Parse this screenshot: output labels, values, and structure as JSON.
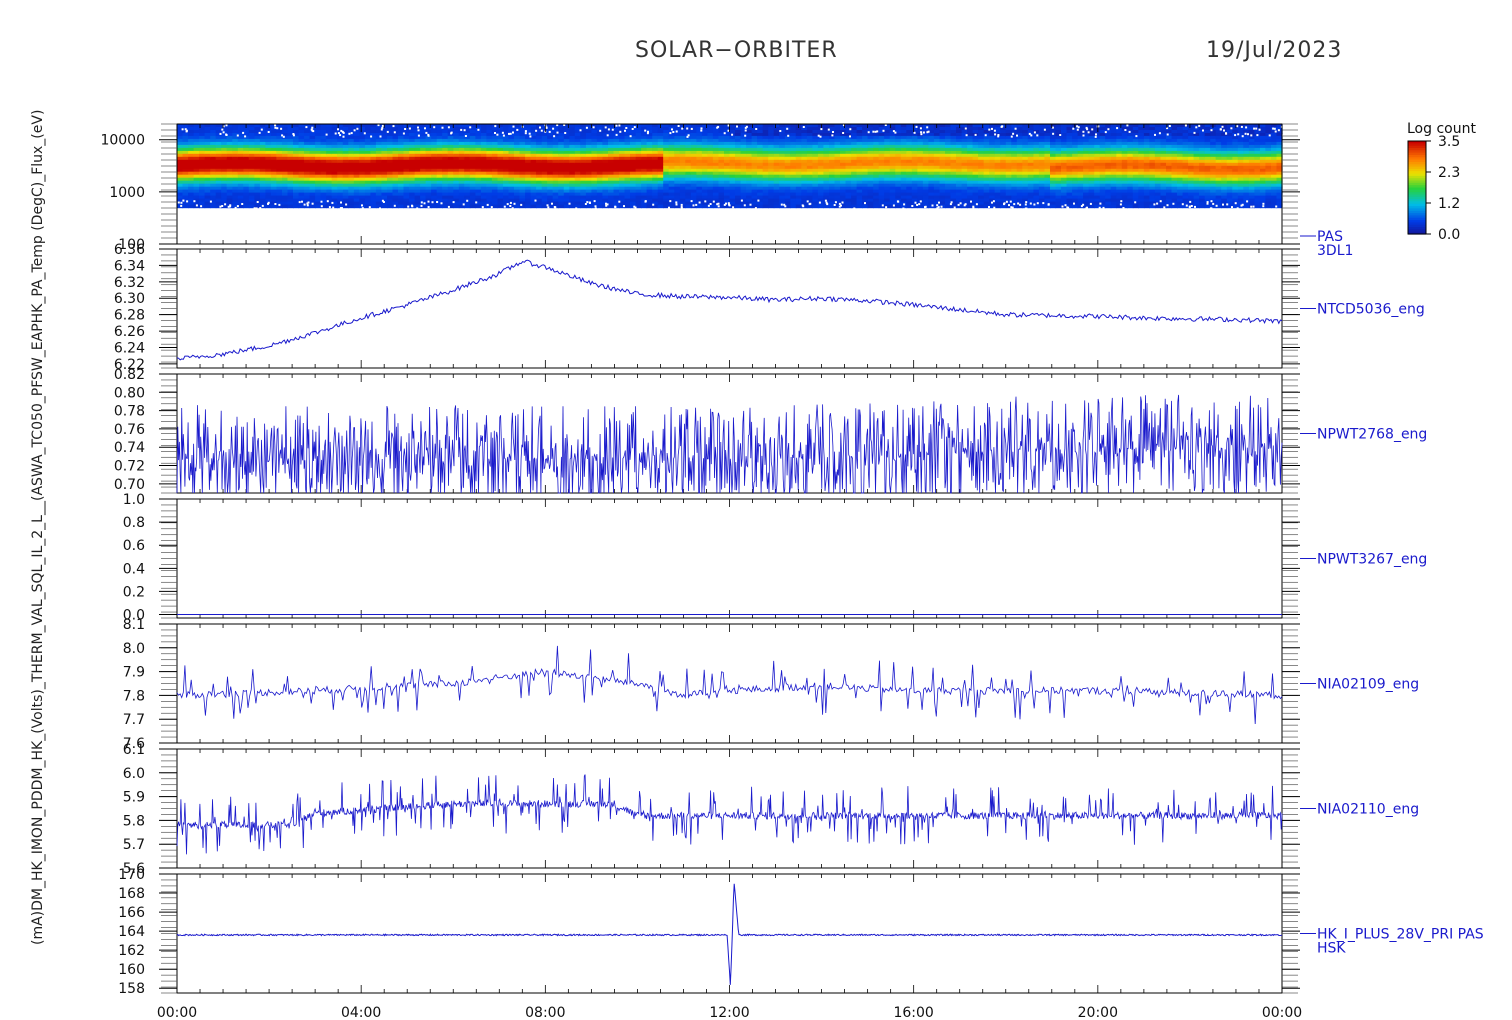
{
  "header": {
    "title": "SOLAR−ORBITER",
    "date": "19/Jul/2023"
  },
  "colorbar": {
    "label": "Log count",
    "ticks": [
      "3.5",
      "2.3",
      "1.2",
      "0.0"
    ]
  },
  "stacked_ylabel": "(mA)DM_HK_IMON_PDDM_HK_(Volts)_THERM_VAL_SQL_IL_2_L__(ASWA_TC050_PFSW_EAPHK_PA_Temp (DegC)_Flux_(eV)",
  "colors": {
    "trace": "#1a1acc",
    "axis": "#000000"
  },
  "chart_data": [
    {
      "type": "heatmap",
      "panel_label": "PAS\n3DL1",
      "y_scale": "log",
      "yticks": [
        "10000",
        "1000",
        "100"
      ],
      "ylim": [
        100,
        20000
      ],
      "x": [
        "00:00",
        "04:00",
        "08:00",
        "12:00",
        "16:00",
        "20:00",
        "00:00"
      ],
      "color_range": [
        0.0,
        3.5
      ],
      "bands": [
        {
          "x": [
            0,
            10.6
          ],
          "peak_eV": 3200,
          "max_log": 3.4
        },
        {
          "x": [
            10.6,
            19.0
          ],
          "peak_eV": 3500,
          "max_log": 2.4
        },
        {
          "x": [
            19.0,
            24
          ],
          "peak_eV": 3000,
          "max_log": 2.6
        }
      ]
    },
    {
      "type": "line",
      "panel_label": "NTCD5036_eng",
      "yticks": [
        "6.36",
        "6.34",
        "6.32",
        "6.30",
        "6.28",
        "6.26",
        "6.24",
        "6.22"
      ],
      "ylim": [
        6.215,
        6.36
      ],
      "x_hours": [
        0,
        1,
        2,
        3,
        4,
        5,
        6,
        7,
        7.5,
        8,
        9,
        10,
        11,
        12,
        13,
        14,
        15,
        16,
        17,
        18,
        19,
        20,
        21,
        22,
        23,
        24
      ],
      "values": [
        6.226,
        6.232,
        6.242,
        6.258,
        6.276,
        6.292,
        6.31,
        6.33,
        6.345,
        6.338,
        6.318,
        6.305,
        6.302,
        6.301,
        6.298,
        6.3,
        6.297,
        6.292,
        6.286,
        6.28,
        6.279,
        6.278,
        6.276,
        6.275,
        6.274,
        6.272
      ]
    },
    {
      "type": "line",
      "panel_label": "NPWT2768_eng",
      "yticks": [
        "0.82",
        "0.80",
        "0.78",
        "0.76",
        "0.74",
        "0.72",
        "0.70"
      ],
      "ylim": [
        0.69,
        0.82
      ],
      "x_hours": [
        0,
        12,
        16,
        18,
        24
      ],
      "values": [
        0.728,
        0.727,
        0.731,
        0.737,
        0.74
      ],
      "noise_band": [
        0.695,
        0.79
      ]
    },
    {
      "type": "line",
      "panel_label": "NPWT3267_eng",
      "yticks": [
        "1.0",
        "0.8",
        "0.6",
        "0.4",
        "0.2",
        "0.0"
      ],
      "ylim": [
        -0.03,
        1.0
      ],
      "x_hours": [
        0,
        24
      ],
      "values": [
        0.0,
        0.0
      ]
    },
    {
      "type": "line",
      "panel_label": "NIA02109_eng",
      "yticks": [
        "8.1",
        "8.0",
        "7.9",
        "7.8",
        "7.7",
        "7.6"
      ],
      "ylim": [
        7.6,
        8.1
      ],
      "x_hours": [
        0,
        3,
        6,
        8,
        10,
        11,
        12,
        14,
        16,
        20,
        24
      ],
      "values": [
        7.8,
        7.82,
        7.85,
        7.9,
        7.85,
        7.8,
        7.82,
        7.84,
        7.82,
        7.82,
        7.8
      ]
    },
    {
      "type": "line",
      "panel_label": "NIA02110_eng",
      "yticks": [
        "6.1",
        "6.0",
        "5.9",
        "5.8",
        "5.7",
        "5.6"
      ],
      "ylim": [
        5.6,
        6.1
      ],
      "x_hours": [
        0,
        2.5,
        3,
        6,
        9.5,
        10,
        14,
        18,
        24
      ],
      "values": [
        5.78,
        5.78,
        5.83,
        5.87,
        5.87,
        5.82,
        5.82,
        5.82,
        5.82
      ]
    },
    {
      "type": "line",
      "panel_label": "HK_I_PLUS_28V_PRI PAS\nHSK",
      "yticks": [
        "170",
        "168",
        "166",
        "164",
        "162",
        "160",
        "158"
      ],
      "ylim": [
        157.5,
        170
      ],
      "x_hours": [
        0,
        11.95,
        12.02,
        12.1,
        12.2,
        24
      ],
      "values": [
        163.6,
        163.6,
        158.2,
        169.2,
        163.6,
        163.6
      ]
    }
  ],
  "x_axis": {
    "ticks": [
      "00:00",
      "04:00",
      "08:00",
      "12:00",
      "16:00",
      "20:00",
      "00:00"
    ],
    "range_hours": [
      0,
      24
    ]
  }
}
